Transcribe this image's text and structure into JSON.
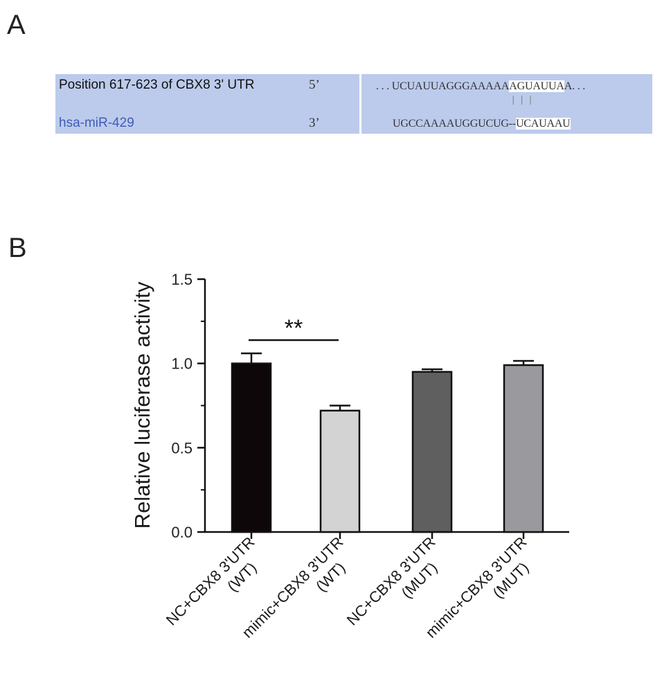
{
  "panels": {
    "a": "A",
    "b": "B"
  },
  "alignment": {
    "utr_label": "Position 617-623 of CBX8 3' UTR",
    "mir_label": "hsa-miR-429",
    "prime5": "5’",
    "prime3": "3’",
    "seq_top_pre": ". . . UCUAUUAGGGAAAAA",
    "seq_top_seed": "AGUAUUA",
    "seq_top_post": "A. . .",
    "seq_bot_pre": "UGCCAAAAUGGUCUG--",
    "seq_bot_seed": "UCAUAAU",
    "pairs": "|||",
    "colors": {
      "box": "#bccbec",
      "mir_label": "#3f5bb8"
    }
  },
  "chart_data": {
    "type": "bar",
    "categories": [
      [
        "NC+CBX8 3'UTR",
        "(WT)"
      ],
      [
        "mimic+CBX8 3'UTR",
        "(WT)"
      ],
      [
        "NC+CBX8 3'UTR",
        "(MUT)"
      ],
      [
        "mimic+CBX8 3'UTR",
        "(MUT)"
      ]
    ],
    "values": [
      1.0,
      0.72,
      0.95,
      0.99
    ],
    "errors": [
      0.06,
      0.03,
      0.015,
      0.025
    ],
    "colors": [
      "#0d0709",
      "#d3d3d3",
      "#5f5f5f",
      "#9a9a9e"
    ],
    "ylabel": "Relative luciferase activity",
    "ylim": [
      0,
      1.5
    ],
    "yticks": [
      "0.0",
      "0.5",
      "1.0",
      "1.5"
    ],
    "yminor": [
      0.25,
      0.75,
      1.25
    ],
    "significance": {
      "label": "**",
      "from": 0,
      "to": 1
    },
    "grid": false
  }
}
